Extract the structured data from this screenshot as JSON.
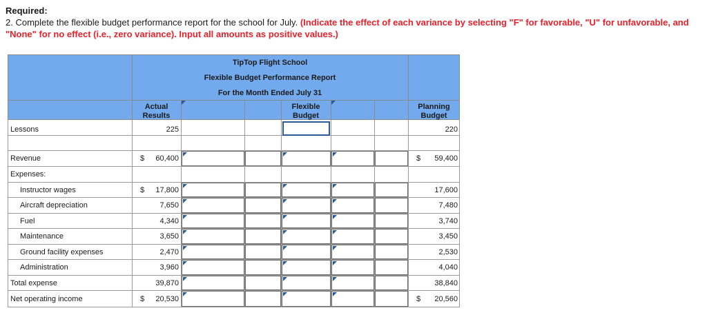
{
  "question": {
    "required": "Required:",
    "text_plain": "2. Complete the flexible budget performance report for the school for July. ",
    "text_red": "(Indicate the effect of each variance by selecting \"F\" for favorable, \"U\" for unfavorable, and \"None\" for no effect (i.e., zero variance). Input all amounts as positive values.)"
  },
  "report": {
    "company": "TipTop Flight School",
    "title": "Flexible Budget Performance Report",
    "period": "For the Month Ended July 31",
    "col_actual": [
      "Actual",
      "Results"
    ],
    "col_flexible": [
      "Flexible",
      "Budget"
    ],
    "col_planning": [
      "Planning",
      "Budget"
    ],
    "rows": {
      "lessons": {
        "label": "Lessons",
        "actual": "225",
        "planning": "220"
      },
      "revenue": {
        "label": "Revenue",
        "actual": "60,400",
        "planning": "59,400"
      },
      "expenses": {
        "label": "Expenses:"
      },
      "instructor": {
        "label": "Instructor wages",
        "actual": "17,800",
        "planning": "17,600"
      },
      "aircraft": {
        "label": "Aircraft depreciation",
        "actual": "7,650",
        "planning": "7,480"
      },
      "fuel": {
        "label": "Fuel",
        "actual": "4,340",
        "planning": "3,740"
      },
      "maintenance": {
        "label": "Maintenance",
        "actual": "3,650",
        "planning": "3,450"
      },
      "ground": {
        "label": "Ground facility expenses",
        "actual": "2,470",
        "planning": "2,530"
      },
      "admin": {
        "label": "Administration",
        "actual": "3,960",
        "planning": "4,040"
      },
      "total": {
        "label": "Total expense",
        "actual": "39,870",
        "planning": "38,840"
      },
      "noi": {
        "label": "Net operating income",
        "actual": "20,530",
        "planning": "20,560"
      }
    },
    "dollar": "$"
  }
}
